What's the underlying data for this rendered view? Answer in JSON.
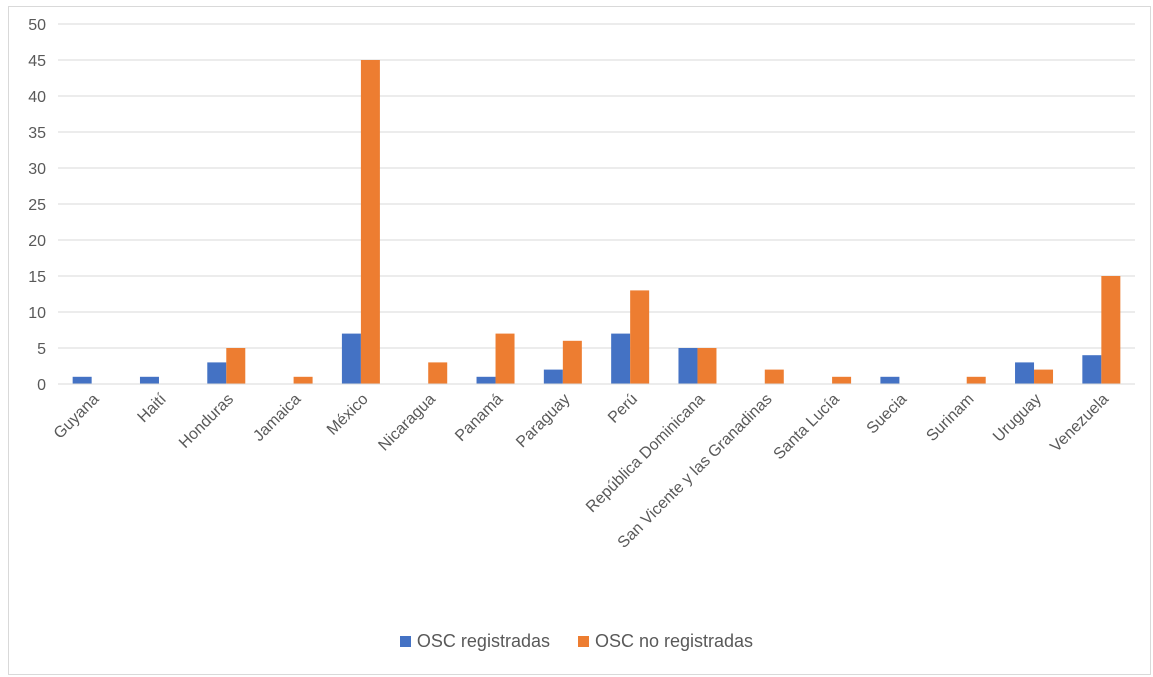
{
  "chart_data": {
    "type": "bar",
    "title": "",
    "xlabel": "",
    "ylabel": "",
    "ylim": [
      0,
      50
    ],
    "yticks": [
      0,
      5,
      10,
      15,
      20,
      25,
      30,
      35,
      40,
      45,
      50
    ],
    "grid": true,
    "legend_position": "bottom",
    "categories": [
      "Guyana",
      "Haití",
      "Honduras",
      "Jamaica",
      "México",
      "Nicaragua",
      "Panamá",
      "Paraguay",
      "Perú",
      "República Dominicana",
      "San Vicente y las Granadinas",
      "Santa Lucía",
      "Suecia",
      "Surinam",
      "Uruguay",
      "Venezuela"
    ],
    "series": [
      {
        "name": "OSC registradas",
        "color": "#4472c4",
        "values": [
          1,
          1,
          3,
          0,
          7,
          0,
          1,
          2,
          7,
          5,
          0,
          0,
          1,
          0,
          3,
          4
        ]
      },
      {
        "name": "OSC no registradas",
        "color": "#ed7d31",
        "values": [
          0,
          0,
          5,
          1,
          45,
          3,
          7,
          6,
          13,
          5,
          2,
          1,
          0,
          1,
          2,
          15
        ]
      }
    ]
  }
}
